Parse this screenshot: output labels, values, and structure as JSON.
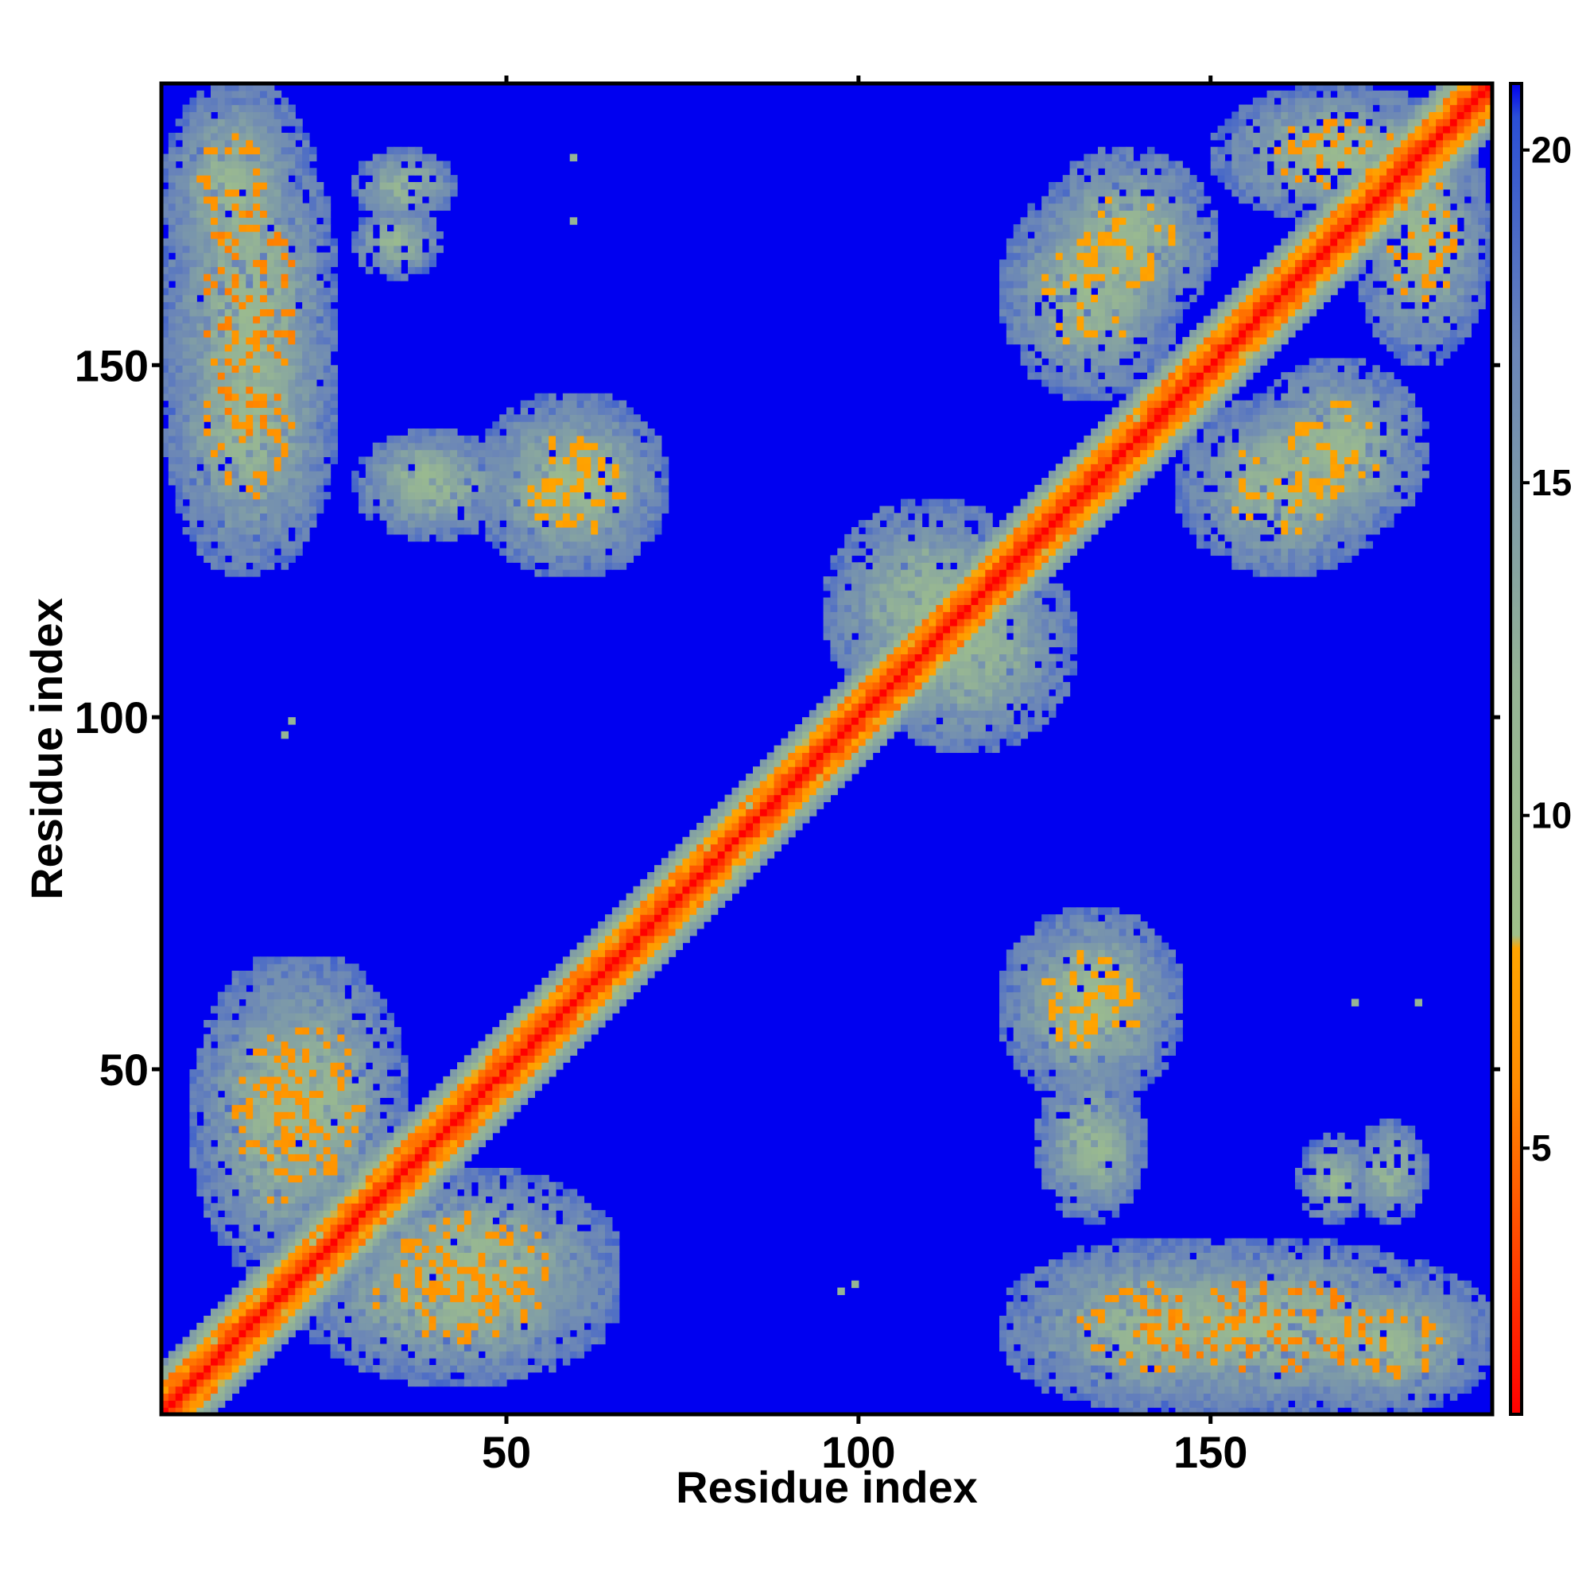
{
  "chart_data": {
    "type": "heatmap",
    "title": "",
    "xlabel": "Residue index",
    "ylabel": "Residue index",
    "n_residues": 189,
    "xlim": [
      1,
      190
    ],
    "ylim": [
      1,
      190
    ],
    "xticks": [
      50,
      100,
      150
    ],
    "yticks": [
      50,
      100,
      150
    ],
    "colorbar": {
      "range": [
        1,
        21
      ],
      "ticks": [
        5,
        10,
        15,
        20
      ],
      "gradient": [
        {
          "v": 1,
          "c": "#ff0000"
        },
        {
          "v": 6,
          "c": "#ff8c00"
        },
        {
          "v": 8,
          "c": "#ffa500"
        },
        {
          "v": 8.2,
          "c": "#9fc08a"
        },
        {
          "v": 12,
          "c": "#95b495"
        },
        {
          "v": 17,
          "c": "#6a85b8"
        },
        {
          "v": 20.5,
          "c": "#2a4fd6"
        },
        {
          "v": 21,
          "c": "#0000f0"
        }
      ]
    },
    "background_value": 21,
    "diagonal_band": {
      "core": 1,
      "edge": 8,
      "halo": 14,
      "halo_width": 7
    },
    "contact_regions": [
      {
        "i": [
          1,
          25
        ],
        "j": [
          125,
          189
        ],
        "min_value": 3
      },
      {
        "i": [
          28,
          42
        ],
        "j": [
          170,
          180
        ],
        "min_value": 12
      },
      {
        "i": [
          30,
          45
        ],
        "j": [
          128,
          140
        ],
        "min_value": 12
      },
      {
        "i": [
          45,
          70
        ],
        "j": [
          120,
          145
        ],
        "min_value": 5
      },
      {
        "i": [
          5,
          30
        ],
        "j": [
          20,
          65
        ],
        "min_value": 4
      },
      {
        "i": [
          25,
          65
        ],
        "j": [
          10,
          35
        ],
        "min_value": 4
      },
      {
        "i": [
          100,
          130
        ],
        "j": [
          95,
          125
        ],
        "min_value": 10
      },
      {
        "i": [
          120,
          145
        ],
        "j": [
          145,
          175
        ],
        "min_value": 5
      },
      {
        "i": [
          155,
          180
        ],
        "j": [
          125,
          150
        ],
        "min_value": 5
      },
      {
        "i": [
          150,
          185
        ],
        "j": [
          170,
          189
        ],
        "min_value": 4
      },
      {
        "i": [
          120,
          145
        ],
        "j": [
          50,
          72
        ],
        "min_value": 5
      },
      {
        "i": [
          120,
          165
        ],
        "j": [
          1,
          25
        ],
        "min_value": 4
      },
      {
        "i": [
          160,
          189
        ],
        "j": [
          1,
          20
        ],
        "min_value": 4
      },
      {
        "i": [
          162,
          172
        ],
        "j": [
          28,
          40
        ],
        "min_value": 12
      },
      {
        "i": [
          125,
          140
        ],
        "j": [
          28,
          50
        ],
        "min_value": 12
      }
    ],
    "isolated_points": [
      {
        "i": 19,
        "j": 99,
        "value": 12
      },
      {
        "i": 59,
        "j": 179,
        "value": 12
      },
      {
        "i": 99,
        "j": 19,
        "value": 12
      },
      {
        "i": 170,
        "j": 59,
        "value": 12
      },
      {
        "i": 97,
        "j": 18,
        "value": 12
      }
    ]
  }
}
